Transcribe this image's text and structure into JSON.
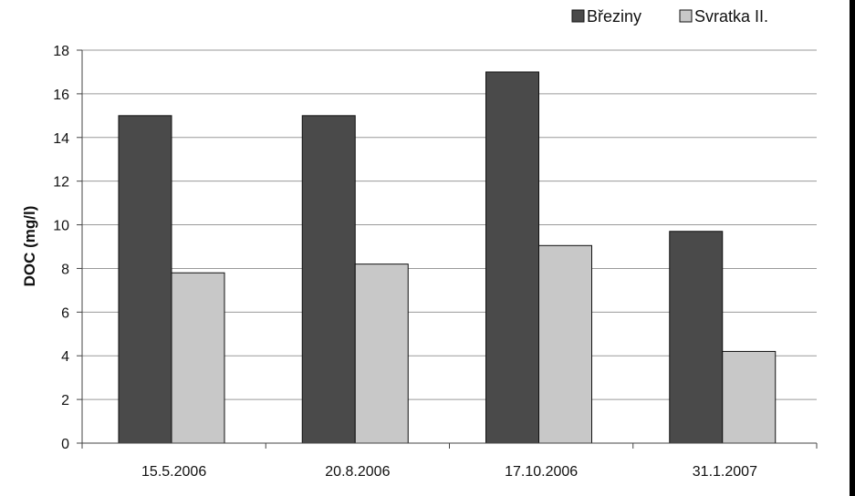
{
  "chart_data": {
    "type": "bar",
    "categories": [
      "15.5.2006",
      "20.8.2006",
      "17.10.2006",
      "31.1.2007"
    ],
    "series": [
      {
        "name": "Březiny",
        "values": [
          15.0,
          15.0,
          17.0,
          9.7
        ],
        "color": "#4a4a4a"
      },
      {
        "name": "Svratka II.",
        "values": [
          7.8,
          8.2,
          9.05,
          4.2
        ],
        "color": "#c8c8c8"
      }
    ],
    "title": "",
    "xlabel": "",
    "ylabel": "DOC (mg/l)",
    "ylim": [
      0,
      18
    ],
    "yticks": [
      0,
      2,
      4,
      6,
      8,
      10,
      12,
      14,
      16,
      18
    ],
    "grid": true,
    "legend_position": "top-right"
  }
}
